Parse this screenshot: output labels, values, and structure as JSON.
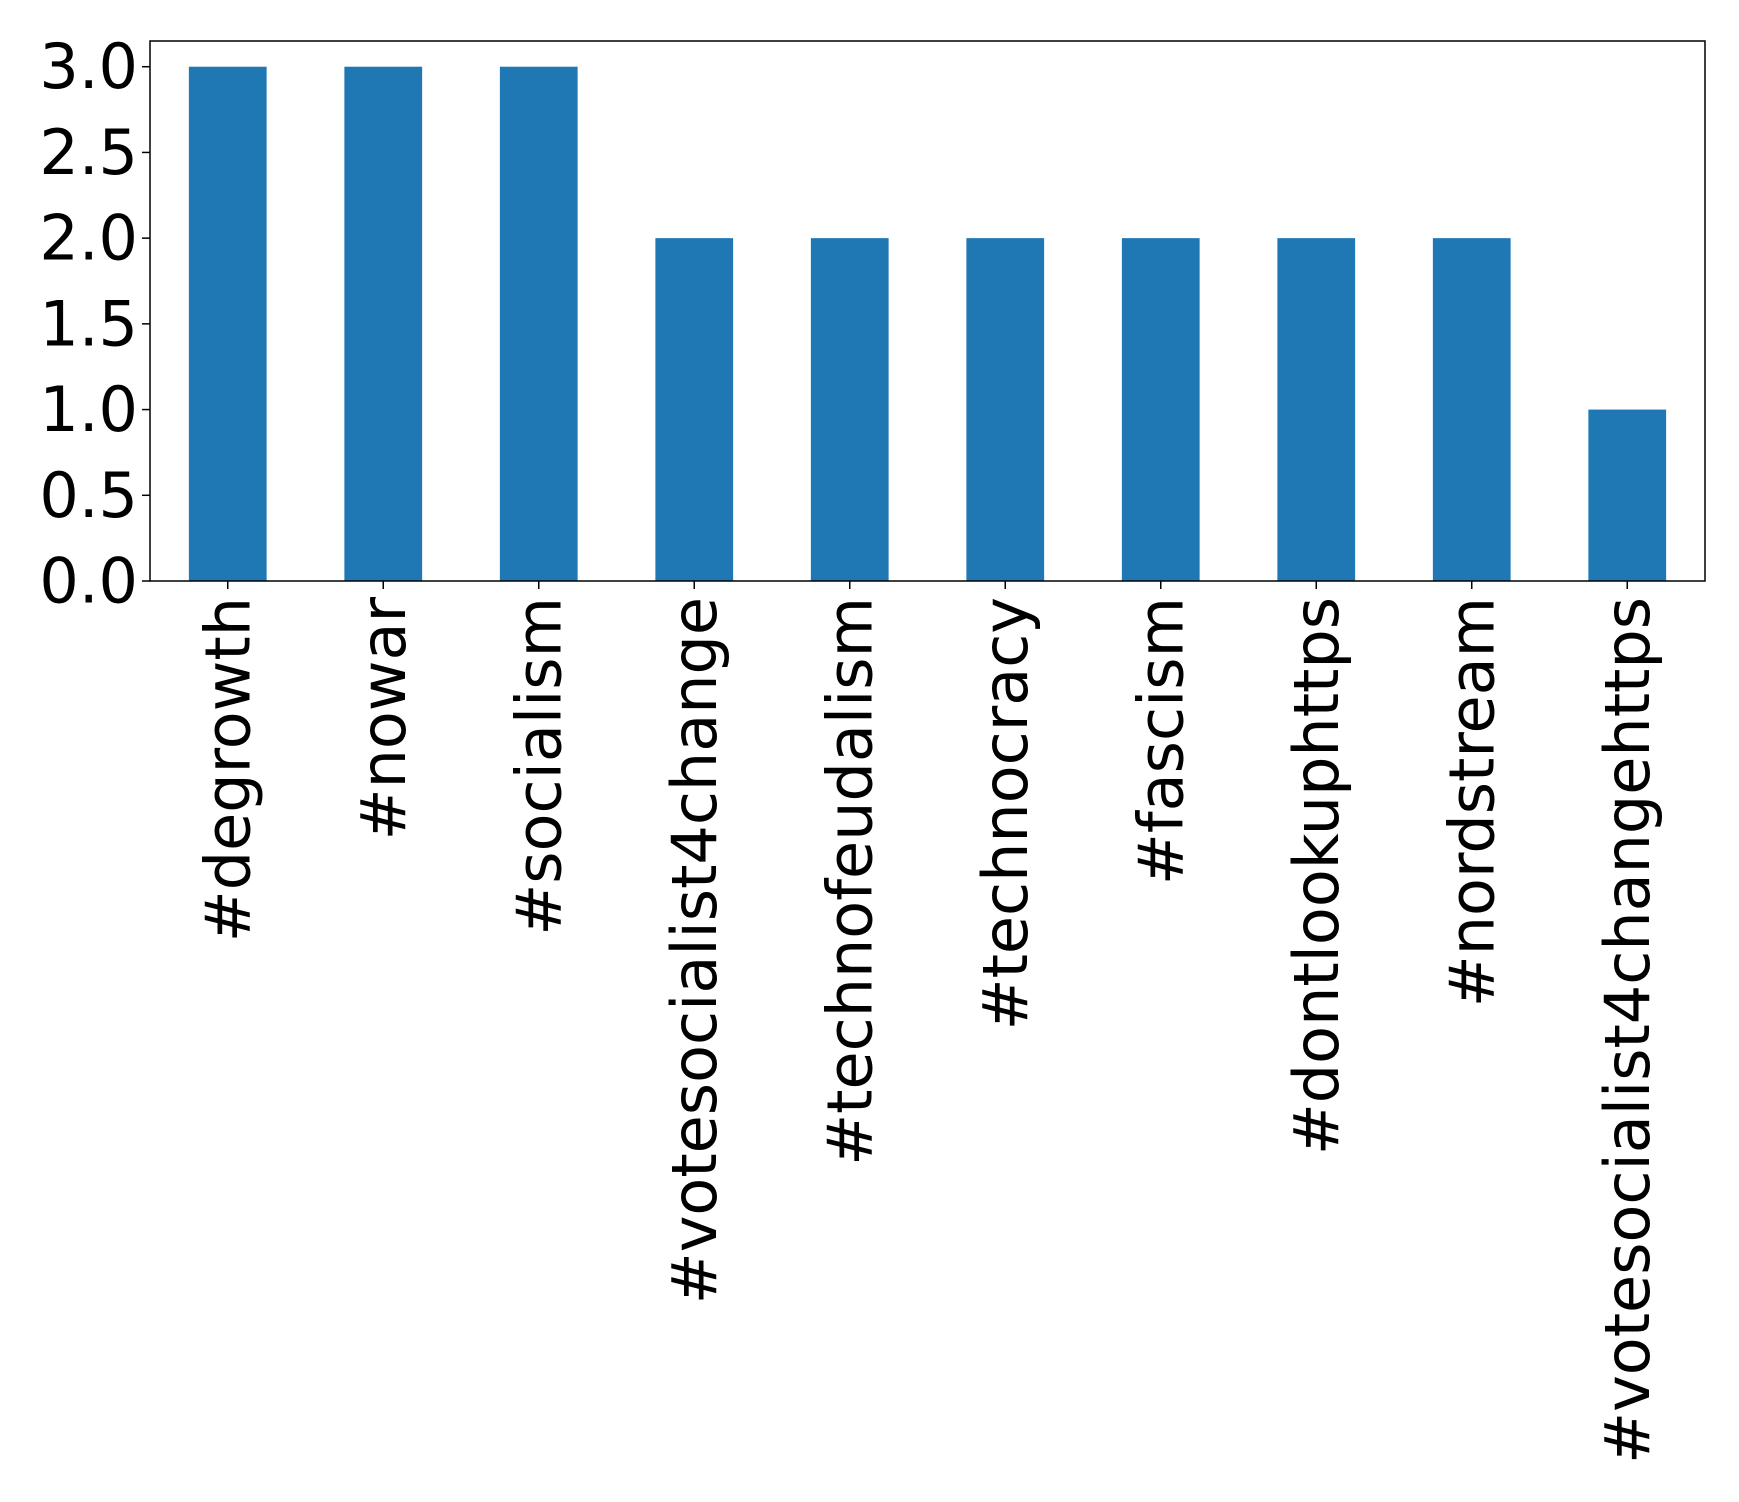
{
  "chart_data": {
    "type": "bar",
    "categories": [
      "#degrowth",
      "#nowar",
      "#socialism",
      "#votesocialist4change",
      "#technofeudalism",
      "#technocracy",
      "#fascism",
      "#dontlookuphttps",
      "#nordstream",
      "#votesocialist4changehttps"
    ],
    "values": [
      3,
      3,
      3,
      2,
      2,
      2,
      2,
      2,
      2,
      1
    ],
    "ylim": [
      0,
      3.15
    ],
    "yticks": [
      "0.0",
      "0.5",
      "1.0",
      "1.5",
      "2.0",
      "2.5",
      "3.0"
    ],
    "title": "",
    "xlabel": "",
    "ylabel": "",
    "grid": false,
    "legend": "none",
    "bar_color": "#1f77b4"
  }
}
